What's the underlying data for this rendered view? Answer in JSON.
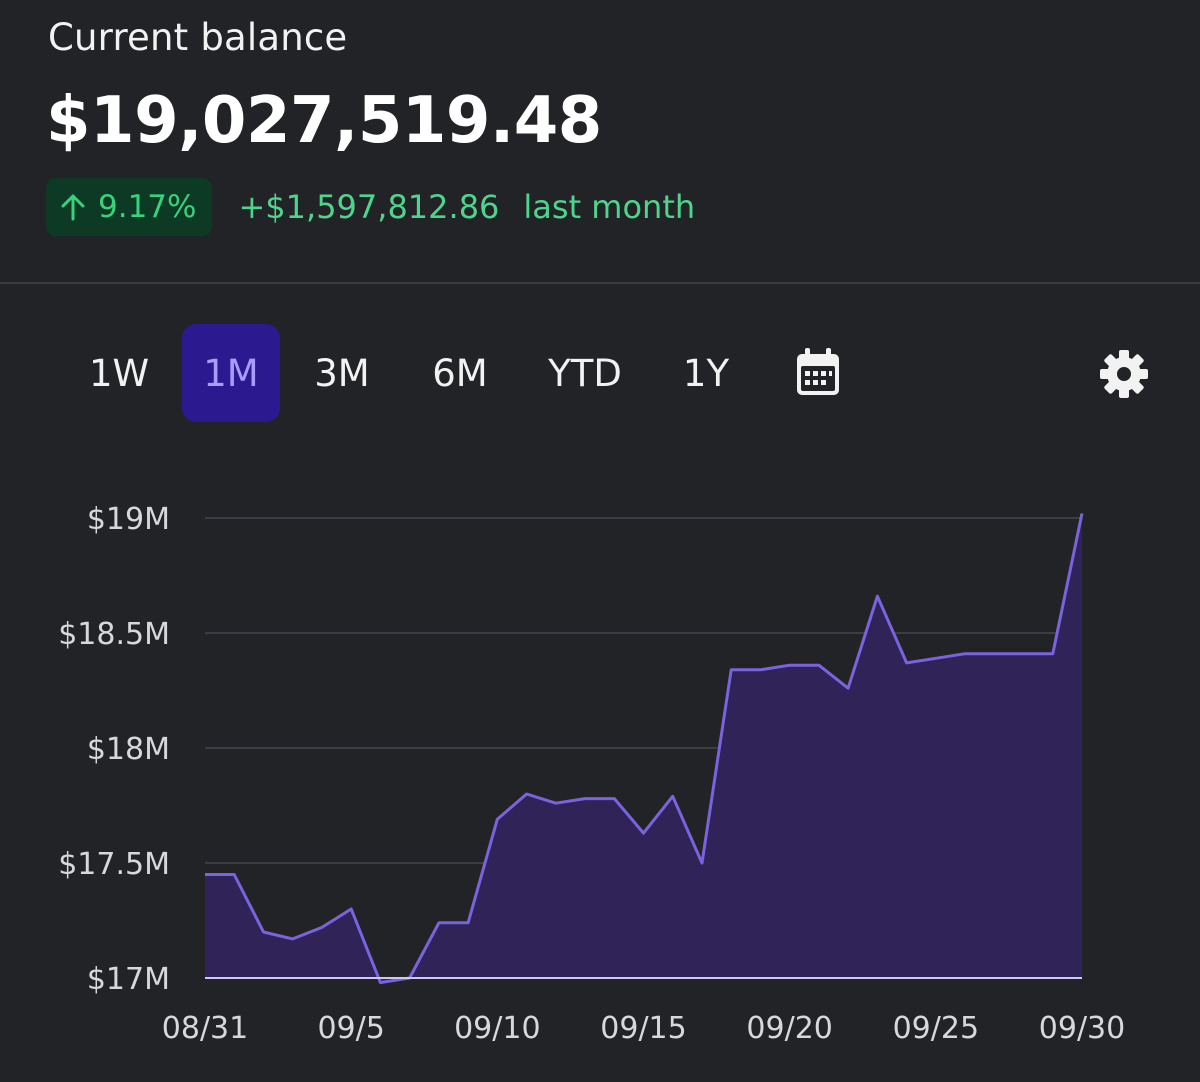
{
  "header": {
    "title": "Current balance",
    "balance": "$19,027,519.48",
    "change_percent": "9.17%",
    "change_amount": "+$1,597,812.86",
    "change_period": "last month",
    "up_icon": "arrow-up-icon"
  },
  "ranges": {
    "items": [
      {
        "label": "1W"
      },
      {
        "label": "1M",
        "active": true
      },
      {
        "label": "3M"
      },
      {
        "label": "6M"
      },
      {
        "label": "YTD"
      },
      {
        "label": "1Y"
      }
    ],
    "calendar_icon": "calendar-icon",
    "settings_icon": "gear-icon"
  },
  "colors": {
    "background": "#222327",
    "accent": "#7b63e0",
    "area_fill": "#2f2358",
    "positive": "#4fd48b",
    "active_tab": "#2b1a8f"
  },
  "chart_data": {
    "type": "area",
    "title": "",
    "xlabel": "",
    "ylabel": "",
    "ylim": [
      17000000,
      19000000
    ],
    "y_ticks": [
      17000000,
      17500000,
      18000000,
      18500000,
      19000000
    ],
    "y_tick_labels": [
      "$17M",
      "$17.5M",
      "$18M",
      "$18.5M",
      "$19M"
    ],
    "x_ticks": [
      "08/31",
      "09/5",
      "09/10",
      "09/15",
      "09/20",
      "09/25",
      "09/30"
    ],
    "grid": true,
    "x": [
      "08/31",
      "09/1",
      "09/2",
      "09/3",
      "09/4",
      "09/5",
      "09/6",
      "09/7",
      "09/8",
      "09/9",
      "09/10",
      "09/11",
      "09/12",
      "09/13",
      "09/14",
      "09/15",
      "09/16",
      "09/17",
      "09/18",
      "09/19",
      "09/20",
      "09/21",
      "09/22",
      "09/23",
      "09/24",
      "09/25",
      "09/26",
      "09/27",
      "09/28",
      "09/29",
      "09/30"
    ],
    "series": [
      {
        "values": [
          17450000,
          17450000,
          17200000,
          17170000,
          17220000,
          17300000,
          16980000,
          17000000,
          17240000,
          17240000,
          17690000,
          17800000,
          17760000,
          17780000,
          17780000,
          17630000,
          17790000,
          17500000,
          18340000,
          18340000,
          18360000,
          18360000,
          18260000,
          18660000,
          18370000,
          18390000,
          18410000,
          18410000,
          18410000,
          18410000,
          19020000
        ]
      }
    ]
  }
}
